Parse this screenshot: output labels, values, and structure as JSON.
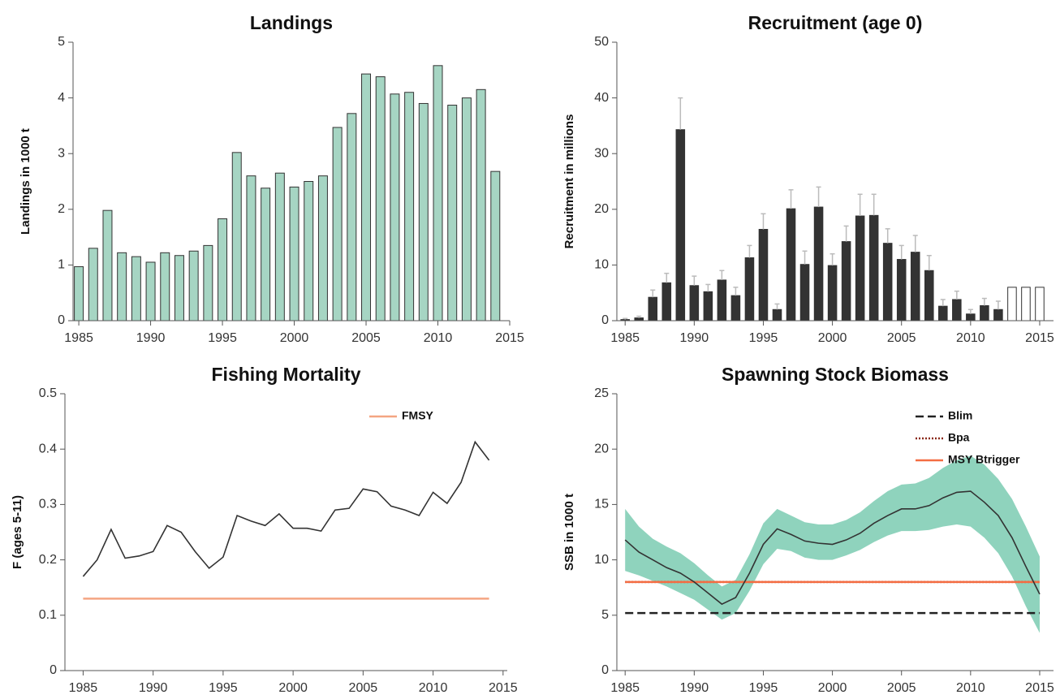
{
  "chart_data": [
    {
      "type": "bar",
      "title": "Landings",
      "y_label": "Landings in 1000 t",
      "x": [
        1985,
        1986,
        1987,
        1988,
        1989,
        1990,
        1991,
        1992,
        1993,
        1994,
        1995,
        1996,
        1997,
        1998,
        1999,
        2000,
        2001,
        2002,
        2003,
        2004,
        2005,
        2006,
        2007,
        2008,
        2009,
        2010,
        2011,
        2012,
        2013,
        2014
      ],
      "values": [
        0.97,
        1.3,
        1.98,
        1.22,
        1.15,
        1.05,
        1.22,
        1.17,
        1.25,
        1.35,
        1.83,
        3.02,
        2.6,
        2.38,
        2.65,
        2.4,
        2.5,
        2.6,
        3.47,
        3.72,
        4.43,
        4.38,
        4.07,
        4.1,
        3.9,
        4.58,
        3.87,
        4.0,
        4.15,
        2.68
      ],
      "color": "#a6d5c3",
      "edge_color": "#333333",
      "xlim": [
        1984.6,
        2015
      ],
      "xticks": [
        1985,
        1990,
        1995,
        2000,
        2005,
        2010,
        2015
      ],
      "ylim": [
        0,
        5
      ],
      "yticks": [
        0,
        1,
        2,
        3,
        4,
        5
      ]
    },
    {
      "type": "bar",
      "title": "Recruitment (age 0)",
      "y_label": "Recruitment in millions",
      "x": [
        1985,
        1986,
        1987,
        1988,
        1989,
        1990,
        1991,
        1992,
        1993,
        1994,
        1995,
        1996,
        1997,
        1998,
        1999,
        2000,
        2001,
        2002,
        2003,
        2004,
        2005,
        2006,
        2007,
        2008,
        2009,
        2010,
        2011,
        2012,
        2013,
        2014,
        2015
      ],
      "values": [
        0.2,
        0.5,
        4.2,
        6.8,
        34.3,
        6.3,
        5.2,
        7.3,
        4.5,
        11.3,
        16.4,
        2.0,
        20.1,
        10.1,
        20.4,
        9.9,
        14.2,
        18.8,
        18.9,
        13.9,
        11.0,
        12.3,
        9.0,
        2.6,
        3.8,
        1.2,
        2.7,
        2.0,
        6.0,
        6.0,
        6.0
      ],
      "upper": [
        0.4,
        0.8,
        5.5,
        8.5,
        40,
        8,
        6.5,
        9,
        6,
        13.5,
        19.2,
        3,
        23.5,
        12.5,
        24,
        12,
        17,
        22.7,
        22.7,
        16.5,
        13.5,
        15.3,
        11.7,
        3.8,
        5.3,
        2,
        4,
        3.5,
        null,
        null,
        null
      ],
      "colors": [
        "#333333",
        "#333333",
        "#333333",
        "#333333",
        "#333333",
        "#333333",
        "#333333",
        "#333333",
        "#333333",
        "#333333",
        "#333333",
        "#333333",
        "#333333",
        "#333333",
        "#333333",
        "#333333",
        "#333333",
        "#333333",
        "#333333",
        "#333333",
        "#333333",
        "#333333",
        "#333333",
        "#333333",
        "#333333",
        "#333333",
        "#333333",
        "#333333",
        "#ffffff",
        "#ffffff",
        "#ffffff"
      ],
      "edge_color": "#333333",
      "error_color": "#bbbbbb",
      "xlim": [
        1984.4,
        2016
      ],
      "xticks": [
        1985,
        1990,
        1995,
        2000,
        2005,
        2010,
        2015
      ],
      "ylim": [
        0,
        50
      ],
      "yticks": [
        0,
        10,
        20,
        30,
        40,
        50
      ]
    },
    {
      "type": "line",
      "title": "Fishing Mortality",
      "y_label": "F (ages 5-11)",
      "x": [
        1985,
        1986,
        1987,
        1988,
        1989,
        1990,
        1991,
        1992,
        1993,
        1994,
        1995,
        1996,
        1997,
        1998,
        1999,
        2000,
        2001,
        2002,
        2003,
        2004,
        2005,
        2006,
        2007,
        2008,
        2009,
        2010,
        2011,
        2012,
        2013,
        2014
      ],
      "values": [
        0.17,
        0.2,
        0.255,
        0.203,
        0.207,
        0.215,
        0.262,
        0.25,
        0.215,
        0.185,
        0.205,
        0.28,
        0.27,
        0.262,
        0.283,
        0.257,
        0.257,
        0.252,
        0.29,
        0.293,
        0.328,
        0.323,
        0.297,
        0.29,
        0.28,
        0.322,
        0.302,
        0.34,
        0.413,
        0.38
      ],
      "color": "#333333",
      "hlines": [
        {
          "name": "FMSY",
          "value": 0.13,
          "color": "#f4a582",
          "style": "solid"
        }
      ],
      "legend": "upper right",
      "xlim": [
        1983.7,
        2015.3
      ],
      "xticks": [
        1985,
        1990,
        1995,
        2000,
        2005,
        2010,
        2015
      ],
      "ylim": [
        0,
        0.5
      ],
      "yticks": [
        0,
        0.1,
        0.2,
        0.3,
        0.4,
        0.5
      ]
    },
    {
      "type": "line",
      "title": "Spawning Stock Biomass",
      "y_label": "SSB in 1000 t",
      "x": [
        1985,
        1986,
        1987,
        1988,
        1989,
        1990,
        1991,
        1992,
        1993,
        1994,
        1995,
        1996,
        1997,
        1998,
        1999,
        2000,
        2001,
        2002,
        2003,
        2004,
        2005,
        2006,
        2007,
        2008,
        2009,
        2010,
        2011,
        2012,
        2013,
        2014,
        2015
      ],
      "values": [
        11.8,
        10.7,
        10.0,
        9.3,
        8.8,
        8.0,
        7.0,
        6.0,
        6.6,
        8.8,
        11.4,
        12.8,
        12.3,
        11.7,
        11.5,
        11.4,
        11.8,
        12.4,
        13.3,
        14.0,
        14.6,
        14.6,
        14.9,
        15.6,
        16.1,
        16.2,
        15.2,
        14.0,
        12.0,
        9.4,
        6.9
      ],
      "lower": [
        9.0,
        8.6,
        8.1,
        7.6,
        7.0,
        6.4,
        5.5,
        4.6,
        5.2,
        7.2,
        9.6,
        11.0,
        10.8,
        10.2,
        10.0,
        10.0,
        10.4,
        10.9,
        11.6,
        12.2,
        12.6,
        12.6,
        12.7,
        13.0,
        13.2,
        13.0,
        12.0,
        10.6,
        8.5,
        5.8,
        3.4
      ],
      "upper": [
        14.6,
        13.0,
        11.9,
        11.2,
        10.6,
        9.7,
        8.6,
        7.6,
        8.2,
        10.5,
        13.3,
        14.6,
        14.0,
        13.4,
        13.2,
        13.2,
        13.6,
        14.3,
        15.3,
        16.2,
        16.8,
        16.9,
        17.4,
        18.3,
        19.0,
        19.4,
        18.6,
        17.3,
        15.5,
        13.0,
        10.3
      ],
      "color": "#333333",
      "band_color": "#8fd3bd",
      "hlines": [
        {
          "name": "Blim",
          "value": 5.2,
          "color": "#222222",
          "style": "dashed"
        },
        {
          "name": "Bpa",
          "value": 8.0,
          "color": "#8b2a1a",
          "style": "dotted"
        },
        {
          "name": "MSY Btrigger",
          "value": 8.0,
          "color": "#f46d43",
          "style": "solid"
        }
      ],
      "legend": "upper right",
      "xlim": [
        1984.4,
        2016
      ],
      "xticks": [
        1985,
        1990,
        1995,
        2000,
        2005,
        2010,
        2015
      ],
      "ylim": [
        0,
        25
      ],
      "yticks": [
        0,
        5,
        10,
        15,
        20,
        25
      ]
    }
  ]
}
